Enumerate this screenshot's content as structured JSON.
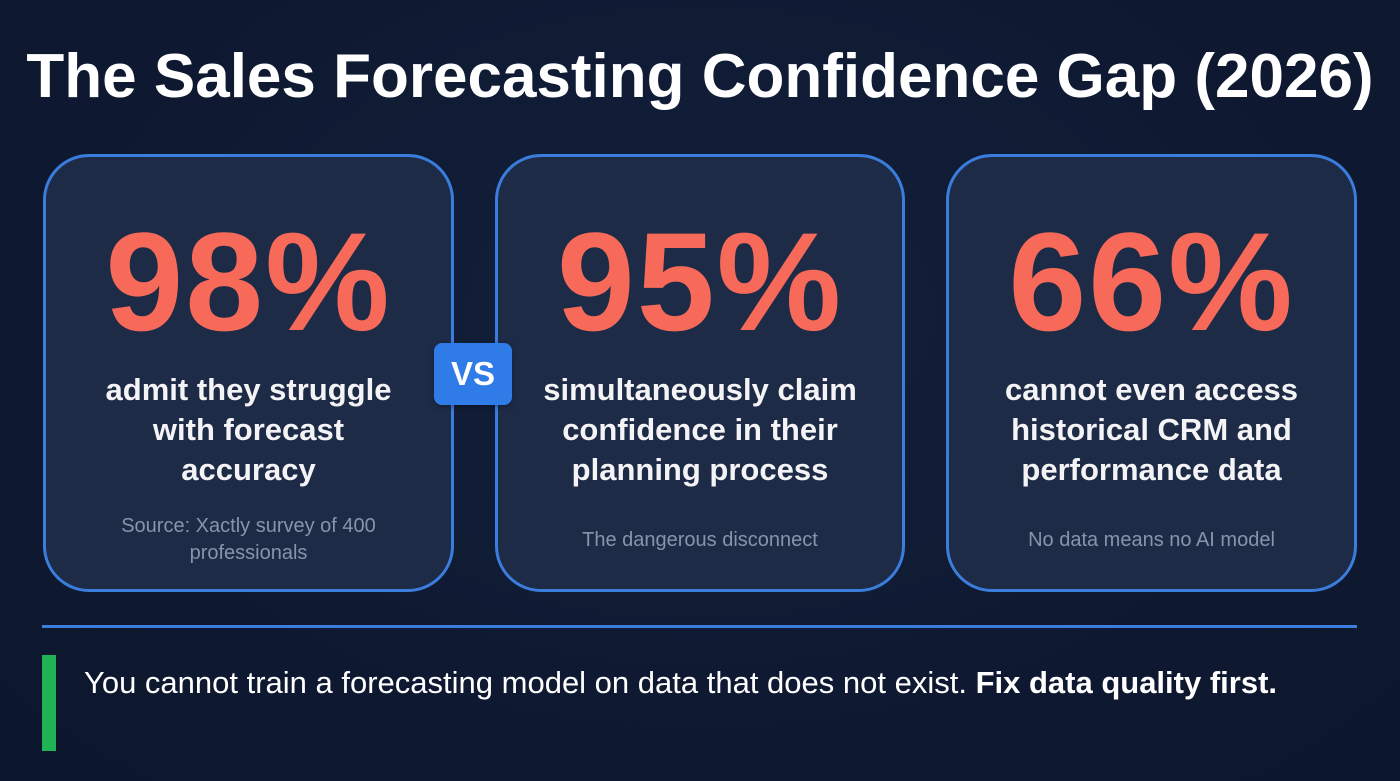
{
  "title": "The Sales Forecasting Confidence Gap (2026)",
  "cards": [
    {
      "stat": "98%",
      "description_lines": [
        "admit they struggle",
        "with forecast",
        "accuracy"
      ],
      "note_lines": [
        "Source: Xactly survey of 400",
        "professionals"
      ]
    },
    {
      "stat": "95%",
      "description_lines": [
        "simultaneously claim",
        "confidence in their",
        "planning process"
      ],
      "note_lines": [
        "The dangerous disconnect"
      ]
    },
    {
      "stat": "66%",
      "description_lines": [
        "cannot even access",
        "historical CRM and",
        "performance data"
      ],
      "note_lines": [
        "No data means no AI model"
      ]
    }
  ],
  "vs_badge": "VS",
  "takeaway": {
    "regular": "You cannot train a forecasting model on data that does not exist. ",
    "bold": "Fix data quality first."
  },
  "colors": {
    "background": "#0f1a33",
    "card_fill": "#1e2b47",
    "card_border": "#3b7ddd",
    "stat": "#f76a5a",
    "note": "#8794aa",
    "vs_badge": "#2f7be8",
    "accent_bar": "#1fb356"
  }
}
